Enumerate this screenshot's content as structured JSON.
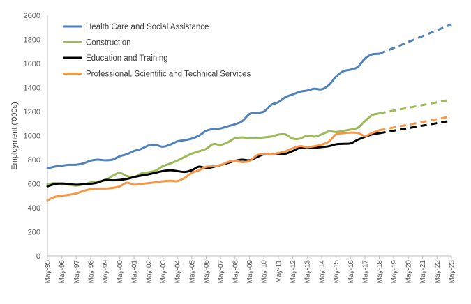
{
  "chart_data": {
    "type": "line",
    "title": "",
    "xlabel": "",
    "ylabel": "Employment ('000s)",
    "ylim": [
      0,
      2000
    ],
    "yticks": [
      0,
      200,
      400,
      600,
      800,
      1000,
      1200,
      1400,
      1600,
      1800,
      2000
    ],
    "grid": false,
    "legend_position": "top-left",
    "categories": [
      "May-95",
      "May-96",
      "May-97",
      "May-98",
      "May-99",
      "May-00",
      "May-01",
      "May-02",
      "May-03",
      "May-04",
      "May-05",
      "May-06",
      "May-07",
      "May-08",
      "May-09",
      "May-10",
      "May-11",
      "May-12",
      "May-13",
      "May-14",
      "May-15",
      "May-16",
      "May-17",
      "May-18",
      "May-19",
      "May-20",
      "May-21",
      "May-22",
      "May-23"
    ],
    "actual_through": "May-18",
    "projection_from": "May-18",
    "series": [
      {
        "name": "Health Care and Social Assistance",
        "color": "#4f81bd",
        "actual": [
          [
            1995.0,
            728
          ],
          [
            1995.5,
            742
          ],
          [
            1996.0,
            750
          ],
          [
            1996.5,
            757
          ],
          [
            1997.0,
            758
          ],
          [
            1997.5,
            770
          ],
          [
            1998.0,
            792
          ],
          [
            1998.5,
            800
          ],
          [
            1999.0,
            795
          ],
          [
            1999.5,
            800
          ],
          [
            2000.0,
            828
          ],
          [
            2000.5,
            845
          ],
          [
            2001.0,
            872
          ],
          [
            2001.5,
            890
          ],
          [
            2002.0,
            918
          ],
          [
            2002.5,
            922
          ],
          [
            2003.0,
            908
          ],
          [
            2003.5,
            925
          ],
          [
            2004.0,
            952
          ],
          [
            2004.5,
            962
          ],
          [
            2005.0,
            975
          ],
          [
            2005.5,
            1000
          ],
          [
            2006.0,
            1040
          ],
          [
            2006.5,
            1055
          ],
          [
            2007.0,
            1060
          ],
          [
            2007.5,
            1078
          ],
          [
            2008.0,
            1095
          ],
          [
            2008.5,
            1120
          ],
          [
            2009.0,
            1180
          ],
          [
            2009.5,
            1190
          ],
          [
            2010.0,
            1200
          ],
          [
            2010.5,
            1255
          ],
          [
            2011.0,
            1278
          ],
          [
            2011.5,
            1320
          ],
          [
            2012.0,
            1342
          ],
          [
            2012.5,
            1365
          ],
          [
            2013.0,
            1375
          ],
          [
            2013.5,
            1390
          ],
          [
            2014.0,
            1385
          ],
          [
            2014.5,
            1420
          ],
          [
            2015.0,
            1490
          ],
          [
            2015.5,
            1535
          ],
          [
            2016.0,
            1548
          ],
          [
            2016.5,
            1570
          ],
          [
            2017.0,
            1640
          ],
          [
            2017.5,
            1675
          ],
          [
            2018.0,
            1680
          ]
        ],
        "projection": [
          [
            2018.0,
            1680
          ],
          [
            2023.0,
            1925
          ]
        ]
      },
      {
        "name": "Construction",
        "color": "#9bbb59",
        "actual": [
          [
            1995.0,
            596
          ],
          [
            1995.5,
            605
          ],
          [
            1996.0,
            600
          ],
          [
            1996.5,
            592
          ],
          [
            1997.0,
            585
          ],
          [
            1997.5,
            595
          ],
          [
            1998.0,
            610
          ],
          [
            1998.5,
            618
          ],
          [
            1999.0,
            628
          ],
          [
            1999.5,
            665
          ],
          [
            2000.0,
            690
          ],
          [
            2000.5,
            665
          ],
          [
            2001.0,
            655
          ],
          [
            2001.5,
            685
          ],
          [
            2002.0,
            695
          ],
          [
            2002.5,
            710
          ],
          [
            2003.0,
            745
          ],
          [
            2003.5,
            768
          ],
          [
            2004.0,
            792
          ],
          [
            2004.5,
            822
          ],
          [
            2005.0,
            850
          ],
          [
            2005.5,
            870
          ],
          [
            2006.0,
            890
          ],
          [
            2006.5,
            930
          ],
          [
            2007.0,
            922
          ],
          [
            2007.5,
            945
          ],
          [
            2008.0,
            978
          ],
          [
            2008.5,
            985
          ],
          [
            2009.0,
            978
          ],
          [
            2009.5,
            978
          ],
          [
            2010.0,
            985
          ],
          [
            2010.5,
            992
          ],
          [
            2011.0,
            1008
          ],
          [
            2011.5,
            1010
          ],
          [
            2012.0,
            975
          ],
          [
            2012.5,
            975
          ],
          [
            2013.0,
            1000
          ],
          [
            2013.5,
            992
          ],
          [
            2014.0,
            1010
          ],
          [
            2014.5,
            1035
          ],
          [
            2015.0,
            1030
          ],
          [
            2015.5,
            1040
          ],
          [
            2016.0,
            1050
          ],
          [
            2016.5,
            1065
          ],
          [
            2017.0,
            1120
          ],
          [
            2017.5,
            1170
          ],
          [
            2018.0,
            1185
          ]
        ],
        "projection": [
          [
            2018.0,
            1185
          ],
          [
            2023.0,
            1300
          ]
        ]
      },
      {
        "name": "Education and Training",
        "color": "#000000",
        "actual": [
          [
            1995.0,
            578
          ],
          [
            1995.5,
            597
          ],
          [
            1996.0,
            602
          ],
          [
            1996.5,
            597
          ],
          [
            1997.0,
            592
          ],
          [
            1997.5,
            595
          ],
          [
            1998.0,
            600
          ],
          [
            1998.5,
            610
          ],
          [
            1999.0,
            632
          ],
          [
            1999.5,
            628
          ],
          [
            2000.0,
            632
          ],
          [
            2000.5,
            640
          ],
          [
            2001.0,
            655
          ],
          [
            2001.5,
            668
          ],
          [
            2002.0,
            678
          ],
          [
            2002.5,
            692
          ],
          [
            2003.0,
            705
          ],
          [
            2003.5,
            712
          ],
          [
            2004.0,
            705
          ],
          [
            2004.5,
            698
          ],
          [
            2005.0,
            712
          ],
          [
            2005.5,
            742
          ],
          [
            2006.0,
            730
          ],
          [
            2006.5,
            740
          ],
          [
            2007.0,
            755
          ],
          [
            2007.5,
            772
          ],
          [
            2008.0,
            790
          ],
          [
            2008.5,
            800
          ],
          [
            2009.0,
            795
          ],
          [
            2009.5,
            820
          ],
          [
            2010.0,
            845
          ],
          [
            2010.5,
            848
          ],
          [
            2011.0,
            845
          ],
          [
            2011.5,
            850
          ],
          [
            2012.0,
            872
          ],
          [
            2012.5,
            898
          ],
          [
            2013.0,
            902
          ],
          [
            2013.5,
            900
          ],
          [
            2014.0,
            905
          ],
          [
            2014.5,
            912
          ],
          [
            2015.0,
            928
          ],
          [
            2015.5,
            932
          ],
          [
            2016.0,
            935
          ],
          [
            2016.5,
            965
          ],
          [
            2017.0,
            990
          ],
          [
            2017.5,
            1010
          ],
          [
            2018.0,
            1020
          ]
        ],
        "projection": [
          [
            2018.0,
            1020
          ],
          [
            2023.0,
            1125
          ]
        ]
      },
      {
        "name": "Professional, Scientific and Technical Services",
        "color": "#f79646",
        "actual": [
          [
            1995.0,
            462
          ],
          [
            1995.5,
            490
          ],
          [
            1996.0,
            500
          ],
          [
            1996.5,
            508
          ],
          [
            1997.0,
            520
          ],
          [
            1997.5,
            540
          ],
          [
            1998.0,
            555
          ],
          [
            1998.5,
            560
          ],
          [
            1999.0,
            560
          ],
          [
            1999.5,
            565
          ],
          [
            2000.0,
            578
          ],
          [
            2000.5,
            608
          ],
          [
            2001.0,
            592
          ],
          [
            2001.5,
            598
          ],
          [
            2002.0,
            605
          ],
          [
            2002.5,
            612
          ],
          [
            2003.0,
            620
          ],
          [
            2003.5,
            625
          ],
          [
            2004.0,
            622
          ],
          [
            2004.5,
            648
          ],
          [
            2005.0,
            690
          ],
          [
            2005.5,
            712
          ],
          [
            2006.0,
            740
          ],
          [
            2006.5,
            745
          ],
          [
            2007.0,
            755
          ],
          [
            2007.5,
            780
          ],
          [
            2008.0,
            790
          ],
          [
            2008.5,
            780
          ],
          [
            2009.0,
            790
          ],
          [
            2009.5,
            835
          ],
          [
            2010.0,
            850
          ],
          [
            2010.5,
            845
          ],
          [
            2011.0,
            855
          ],
          [
            2011.5,
            870
          ],
          [
            2012.0,
            895
          ],
          [
            2012.5,
            912
          ],
          [
            2013.0,
            905
          ],
          [
            2013.5,
            912
          ],
          [
            2014.0,
            925
          ],
          [
            2014.5,
            950
          ],
          [
            2015.0,
            1010
          ],
          [
            2015.5,
            1020
          ],
          [
            2016.0,
            1025
          ],
          [
            2016.5,
            1022
          ],
          [
            2017.0,
            998
          ],
          [
            2017.5,
            1022
          ],
          [
            2018.0,
            1045
          ]
        ],
        "projection": [
          [
            2018.0,
            1045
          ],
          [
            2023.0,
            1160
          ]
        ]
      }
    ]
  }
}
